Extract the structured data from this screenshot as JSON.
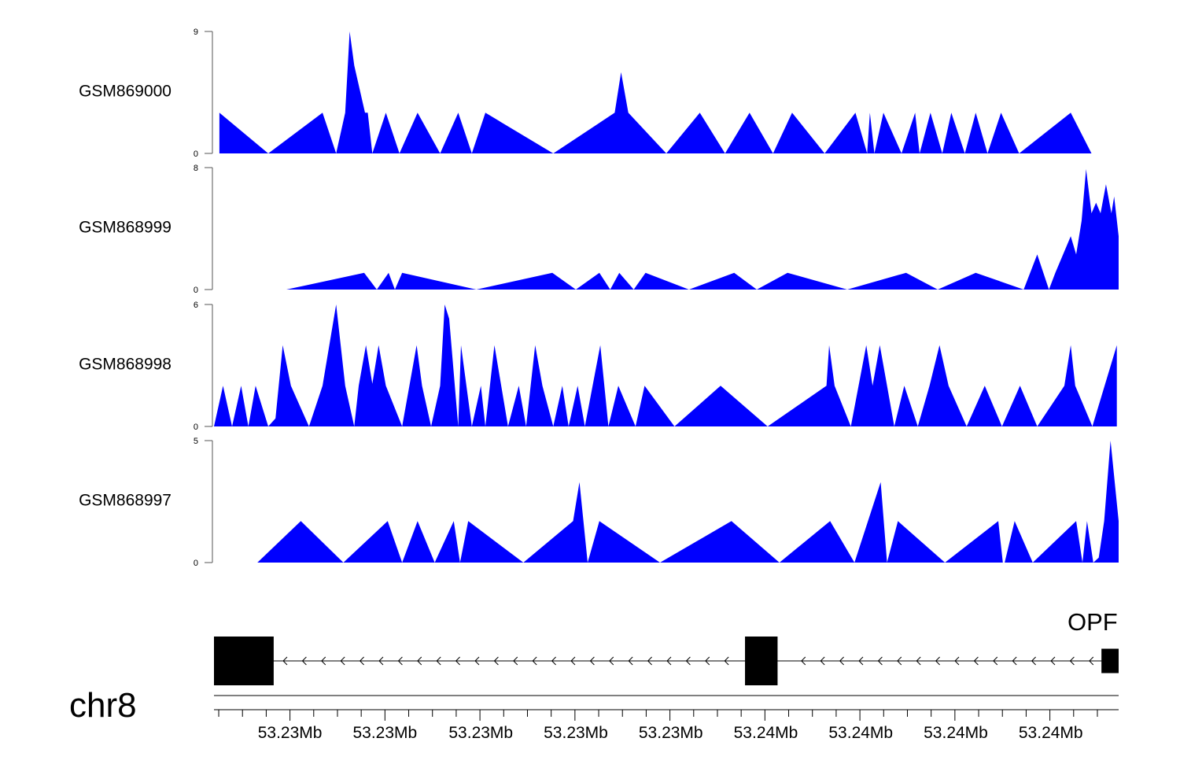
{
  "chart_data": {
    "type": "area",
    "chromosome": "chr8",
    "gene_label": "OPF",
    "fill_color": "#0000ff",
    "x_start": 0,
    "x_end": 100,
    "genomic_axis": {
      "tick_labels": [
        "53.23Mb",
        "53.23Mb",
        "53.23Mb",
        "53.23Mb",
        "53.23Mb",
        "53.24Mb",
        "53.24Mb",
        "53.24Mb",
        "53.24Mb"
      ],
      "label_positions": [
        8.4,
        18.9,
        29.5,
        40.0,
        50.5,
        61.0,
        71.5,
        82.0,
        92.5
      ],
      "minor_ticks_per_label": 4
    },
    "tracks": [
      {
        "name": "GSM869000",
        "ylim": [
          0,
          9
        ],
        "points": [
          [
            0.6,
            3
          ],
          [
            6,
            0
          ],
          [
            12,
            3
          ],
          [
            13.5,
            0
          ],
          [
            14.5,
            3
          ],
          [
            15,
            9
          ],
          [
            15.5,
            6.5
          ],
          [
            16.7,
            3
          ],
          [
            17,
            3
          ],
          [
            17.5,
            0
          ],
          [
            19,
            3
          ],
          [
            20.5,
            0
          ],
          [
            22.5,
            3
          ],
          [
            25,
            0
          ],
          [
            27,
            3
          ],
          [
            28.5,
            0
          ],
          [
            30,
            3
          ],
          [
            37.5,
            0
          ],
          [
            44.3,
            3
          ],
          [
            45,
            6
          ],
          [
            45.8,
            3
          ],
          [
            50,
            0
          ],
          [
            53.7,
            3
          ],
          [
            56.5,
            0
          ],
          [
            59.2,
            3
          ],
          [
            61.8,
            0
          ],
          [
            63.9,
            3
          ],
          [
            67.5,
            0
          ],
          [
            70.9,
            3
          ],
          [
            72.2,
            0
          ],
          [
            72.5,
            3
          ],
          [
            73,
            0
          ],
          [
            74,
            3
          ],
          [
            76,
            0
          ],
          [
            77.5,
            3
          ],
          [
            78,
            0
          ],
          [
            79.2,
            3
          ],
          [
            80.5,
            0
          ],
          [
            81.5,
            3
          ],
          [
            83,
            0
          ],
          [
            84.2,
            3
          ],
          [
            85.5,
            0
          ],
          [
            87,
            3
          ],
          [
            89,
            0
          ],
          [
            94.7,
            3
          ],
          [
            97,
            0
          ]
        ]
      },
      {
        "name": "GSM868999",
        "ylim": [
          0,
          8
        ],
        "points": [
          [
            8,
            0
          ],
          [
            16.6,
            1.1
          ],
          [
            18,
            0
          ],
          [
            19.3,
            1.1
          ],
          [
            20,
            0
          ],
          [
            20.8,
            1.1
          ],
          [
            29,
            0
          ],
          [
            37.4,
            1.1
          ],
          [
            40,
            0
          ],
          [
            42.6,
            1.1
          ],
          [
            43.8,
            0
          ],
          [
            44.8,
            1.1
          ],
          [
            46.4,
            0
          ],
          [
            47.7,
            1.1
          ],
          [
            52.5,
            0
          ],
          [
            57.5,
            1.1
          ],
          [
            60,
            0
          ],
          [
            63.4,
            1.1
          ],
          [
            70,
            0
          ],
          [
            76.5,
            1.1
          ],
          [
            80,
            0
          ],
          [
            84.2,
            1.1
          ],
          [
            89.5,
            0
          ],
          [
            91,
            2.3
          ],
          [
            92.3,
            0
          ],
          [
            93,
            1.1
          ],
          [
            94.7,
            3.5
          ],
          [
            95.3,
            2.3
          ],
          [
            95.9,
            4.5
          ],
          [
            96.4,
            7.9
          ],
          [
            97,
            5
          ],
          [
            97.5,
            5.7
          ],
          [
            98,
            5
          ],
          [
            98.6,
            6.9
          ],
          [
            99.2,
            5
          ],
          [
            99.5,
            6.1
          ],
          [
            100,
            3.5
          ],
          [
            100,
            0
          ]
        ]
      },
      {
        "name": "GSM868998",
        "ylim": [
          0,
          6
        ],
        "points": [
          [
            0,
            0
          ],
          [
            1,
            2
          ],
          [
            2,
            0
          ],
          [
            3,
            2
          ],
          [
            3.8,
            0
          ],
          [
            4.6,
            2
          ],
          [
            6,
            0
          ],
          [
            6.8,
            0.4
          ],
          [
            7.6,
            4
          ],
          [
            8.5,
            2
          ],
          [
            10.5,
            0
          ],
          [
            12,
            2
          ],
          [
            13.5,
            6
          ],
          [
            14.5,
            2
          ],
          [
            15.5,
            0
          ],
          [
            16,
            2
          ],
          [
            16.8,
            4
          ],
          [
            17.5,
            2.1
          ],
          [
            18.2,
            4
          ],
          [
            19,
            2
          ],
          [
            20.8,
            0
          ],
          [
            22.4,
            4
          ],
          [
            23,
            2
          ],
          [
            24,
            0
          ],
          [
            25,
            2
          ],
          [
            25.5,
            6
          ],
          [
            26,
            5.3
          ],
          [
            27,
            0
          ],
          [
            27.3,
            4
          ],
          [
            28.5,
            0
          ],
          [
            29.5,
            2
          ],
          [
            30,
            0
          ],
          [
            31,
            4
          ],
          [
            32.5,
            0
          ],
          [
            33.7,
            2
          ],
          [
            34.5,
            0
          ],
          [
            35.5,
            4
          ],
          [
            36.3,
            2
          ],
          [
            37.5,
            0
          ],
          [
            38.5,
            2
          ],
          [
            39.2,
            0
          ],
          [
            40.2,
            2
          ],
          [
            41,
            0
          ],
          [
            42.7,
            4
          ],
          [
            43.6,
            0
          ],
          [
            44.7,
            2
          ],
          [
            46.6,
            0
          ],
          [
            47.6,
            2
          ],
          [
            50.9,
            0
          ],
          [
            56,
            2
          ],
          [
            61.2,
            0
          ],
          [
            67.7,
            2
          ],
          [
            68,
            4
          ],
          [
            68.6,
            2
          ],
          [
            70.4,
            0
          ],
          [
            72.1,
            4
          ],
          [
            72.8,
            2
          ],
          [
            73.6,
            4
          ],
          [
            74.4,
            2
          ],
          [
            75.2,
            0
          ],
          [
            76.3,
            2
          ],
          [
            77.8,
            0
          ],
          [
            79.1,
            2
          ],
          [
            80.2,
            4
          ],
          [
            81.2,
            2
          ],
          [
            83.2,
            0
          ],
          [
            85.2,
            2
          ],
          [
            87.1,
            0
          ],
          [
            89.1,
            2
          ],
          [
            91,
            0
          ],
          [
            94,
            2
          ],
          [
            94.7,
            4
          ],
          [
            95.2,
            2
          ],
          [
            97.1,
            0
          ],
          [
            99.8,
            4
          ],
          [
            99.8,
            0
          ]
        ]
      },
      {
        "name": "GSM868997",
        "ylim": [
          0,
          5
        ],
        "points": [
          [
            4.8,
            0
          ],
          [
            9.6,
            1.7
          ],
          [
            14.3,
            0
          ],
          [
            19.2,
            1.7
          ],
          [
            20.8,
            0
          ],
          [
            22.5,
            1.7
          ],
          [
            24.4,
            0
          ],
          [
            26.5,
            1.7
          ],
          [
            27.2,
            0
          ],
          [
            28.1,
            1.7
          ],
          [
            34.2,
            0
          ],
          [
            39.7,
            1.7
          ],
          [
            40.4,
            3.3
          ],
          [
            41.3,
            0
          ],
          [
            42.6,
            1.7
          ],
          [
            49.3,
            0
          ],
          [
            57.2,
            1.7
          ],
          [
            62.5,
            0
          ],
          [
            68.1,
            1.7
          ],
          [
            70.8,
            0
          ],
          [
            73.7,
            3.3
          ],
          [
            74.4,
            0
          ],
          [
            75.6,
            1.7
          ],
          [
            80.8,
            0
          ],
          [
            86.7,
            1.7
          ],
          [
            87.2,
            0
          ],
          [
            87.4,
            0
          ],
          [
            88.5,
            1.7
          ],
          [
            90.5,
            0
          ],
          [
            95.3,
            1.7
          ],
          [
            96,
            0
          ],
          [
            96.5,
            1.7
          ],
          [
            97.2,
            0
          ],
          [
            97.8,
            0.2
          ],
          [
            98.4,
            1.7
          ],
          [
            99.1,
            5
          ],
          [
            100,
            1.7
          ],
          [
            100,
            0
          ]
        ]
      }
    ],
    "gene_model": {
      "strand": "-",
      "exons": [
        [
          0,
          6.6
        ],
        [
          58.7,
          62.3
        ],
        [
          98.1,
          100
        ]
      ],
      "exon_heights": [
        1,
        1,
        0.5
      ]
    }
  }
}
